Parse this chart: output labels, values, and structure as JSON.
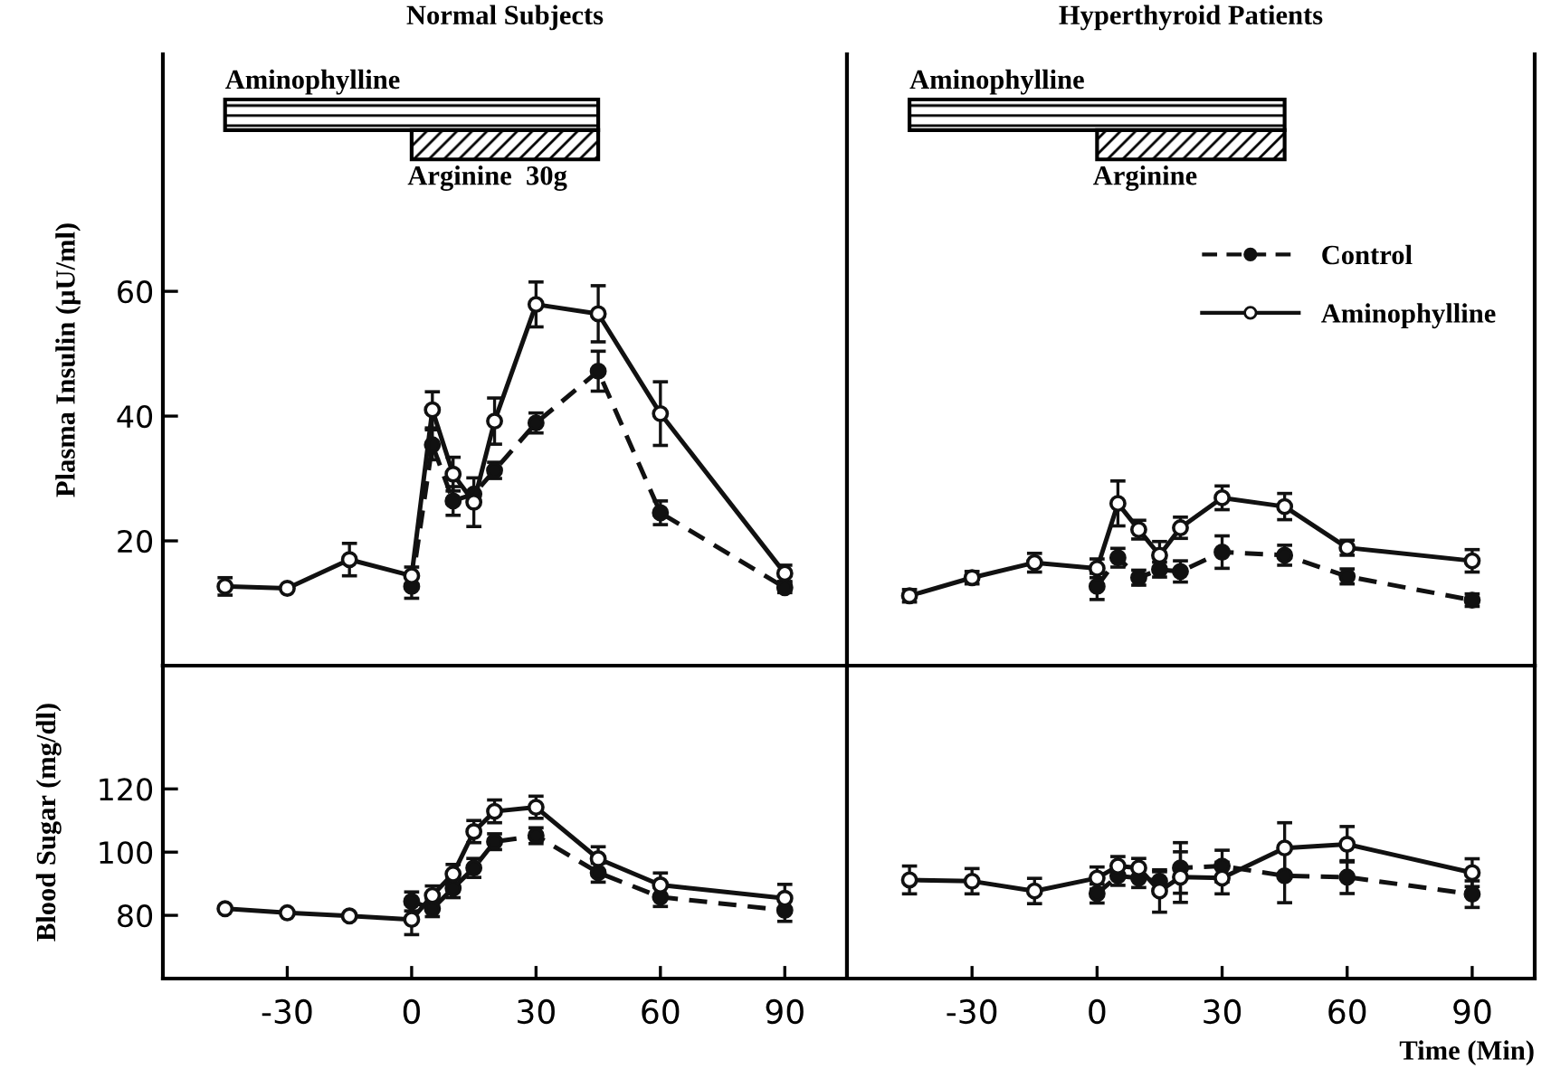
{
  "chart_data": [
    {
      "type": "line",
      "title": "Normal Subjects",
      "ylabel": "Plasma Insulin (μU/ml)",
      "xlim": [
        -60,
        105
      ],
      "ylim": [
        0,
        98
      ],
      "yticks": [
        20,
        40,
        60
      ],
      "xticks": [
        -30,
        0,
        30,
        60,
        90
      ],
      "tick_labels": "y",
      "marker": "circle",
      "grid": false,
      "legend": false,
      "bands": [
        {
          "axis": "x",
          "from": -45,
          "to": 45,
          "label": "Aminophylline"
        },
        {
          "axis": "x",
          "from": 0,
          "to": 45,
          "label": "Arginine  30g"
        }
      ],
      "series": [
        {
          "color": "#111111",
          "line_style": "dashed",
          "x": [
            0,
            5,
            10,
            15,
            20,
            30,
            45,
            60,
            90
          ],
          "values": [
            12.7,
            35.4,
            26.4,
            27.5,
            31.3,
            38.9,
            47.2,
            24.5,
            12.5
          ],
          "errors": [
            1.9,
            2.4,
            2.3,
            null,
            1.3,
            1.6,
            3.2,
            1.9,
            0.8
          ]
        },
        {
          "color": "#111111",
          "line_style": "solid",
          "x": [
            -45,
            -30,
            -15,
            0,
            5,
            10,
            15,
            20,
            30,
            45,
            60,
            90
          ],
          "values": [
            12.7,
            12.4,
            17.0,
            14.4,
            41.0,
            30.7,
            26.2,
            39.2,
            57.9,
            56.4,
            40.4,
            14.8
          ],
          "errors": [
            1.4,
            null,
            2.6,
            1.4,
            2.9,
            2.7,
            3.9,
            3.7,
            3.6,
            4.5,
            5.1,
            1.3
          ]
        }
      ]
    },
    {
      "type": "line",
      "title": "Hyperthyroid Patients",
      "xlim": [
        -60,
        105
      ],
      "ylim": [
        0,
        98
      ],
      "xticks": [
        -30,
        0,
        30,
        60,
        90
      ],
      "yticks": [
        20,
        40,
        60
      ],
      "tick_labels": false,
      "marker": "circle",
      "grid": false,
      "legend": "right",
      "bands": [
        {
          "axis": "x",
          "from": -45,
          "to": 45,
          "label": "Aminophylline"
        },
        {
          "axis": "x",
          "from": 0,
          "to": 45,
          "label": "Arginine"
        }
      ],
      "series": [
        {
          "name": "Control",
          "color": "#111111",
          "line_style": "dashed",
          "x": [
            0,
            5,
            10,
            15,
            20,
            30,
            45,
            60,
            90
          ],
          "values": [
            12.7,
            17.3,
            14.1,
            15.4,
            15.1,
            18.2,
            17.7,
            14.3,
            10.5
          ],
          "errors": [
            2.1,
            1.5,
            1.2,
            1.2,
            1.7,
            2.6,
            1.6,
            1.2,
            1.0
          ]
        },
        {
          "name": "Aminophylline",
          "color": "#111111",
          "line_style": "solid",
          "x": [
            -45,
            -30,
            -15,
            0,
            5,
            10,
            15,
            20,
            30,
            45,
            60,
            90
          ],
          "values": [
            11.2,
            14.1,
            16.5,
            15.6,
            26.0,
            21.8,
            17.7,
            22.1,
            26.9,
            25.5,
            18.9,
            16.8
          ],
          "errors": [
            1.0,
            1.0,
            1.5,
            1.5,
            3.6,
            1.5,
            2.2,
            1.7,
            1.9,
            2.1,
            1.2,
            1.8
          ]
        }
      ]
    },
    {
      "type": "line",
      "ylabel": "Blood Sugar (mg/dl)",
      "xlim": [
        -60,
        105
      ],
      "ylim": [
        60,
        159
      ],
      "yticks": [
        80,
        100,
        120
      ],
      "xticks": [
        -30,
        0,
        30,
        60,
        90
      ],
      "marker": "circle",
      "grid": false,
      "legend": false,
      "series": [
        {
          "color": "#111111",
          "line_style": "dashed",
          "x": [
            0,
            5,
            10,
            15,
            20,
            30,
            45,
            60,
            90
          ],
          "values": [
            84.4,
            82.1,
            88.6,
            95.0,
            103.3,
            105.2,
            93.5,
            85.8,
            81.6
          ],
          "errors": [
            3.0,
            2.5,
            3.0,
            3.0,
            2.5,
            2.5,
            3.0,
            3.0,
            3.5
          ]
        },
        {
          "color": "#111111",
          "line_style": "solid",
          "x": [
            -45,
            -30,
            -15,
            0,
            5,
            10,
            15,
            20,
            30,
            45,
            60,
            90
          ],
          "values": [
            82.1,
            80.8,
            79.8,
            78.7,
            86.3,
            93.1,
            106.5,
            112.9,
            114.2,
            97.9,
            89.6,
            85.4
          ],
          "errors": [
            null,
            null,
            null,
            4.8,
            3.0,
            3.0,
            3.5,
            3.6,
            3.5,
            3.8,
            3.8,
            4.4
          ]
        }
      ]
    },
    {
      "type": "line",
      "xlabel": "Time (Min)",
      "xlim": [
        -60,
        105
      ],
      "ylim": [
        60,
        159
      ],
      "yticks": [
        80,
        100,
        120
      ],
      "xticks": [
        -30,
        0,
        30,
        60,
        90
      ],
      "tick_labels": "x",
      "marker": "circle",
      "grid": false,
      "legend": false,
      "series": [
        {
          "color": "#111111",
          "line_style": "dashed",
          "x": [
            0,
            5,
            10,
            15,
            20,
            30,
            45,
            60,
            90
          ],
          "values": [
            86.9,
            92.5,
            91.8,
            90.8,
            95.0,
            95.6,
            92.5,
            92.1,
            86.7
          ],
          "errors": [
            3.0,
            3.0,
            3.0,
            3.0,
            8.0,
            5.0,
            8.5,
            5.2,
            4.2
          ]
        },
        {
          "color": "#111111",
          "line_style": "solid",
          "x": [
            -45,
            -30,
            -15,
            0,
            5,
            10,
            15,
            20,
            30,
            45,
            60,
            90
          ],
          "values": [
            91.2,
            90.8,
            87.7,
            91.8,
            95.6,
            95.0,
            87.7,
            92.1,
            91.8,
            101.3,
            102.5,
            93.5
          ],
          "errors": [
            4.4,
            4.0,
            4.0,
            3.5,
            3.0,
            3.0,
            6.7,
            8.0,
            5.0,
            8.0,
            5.6,
            4.4
          ]
        }
      ]
    }
  ]
}
